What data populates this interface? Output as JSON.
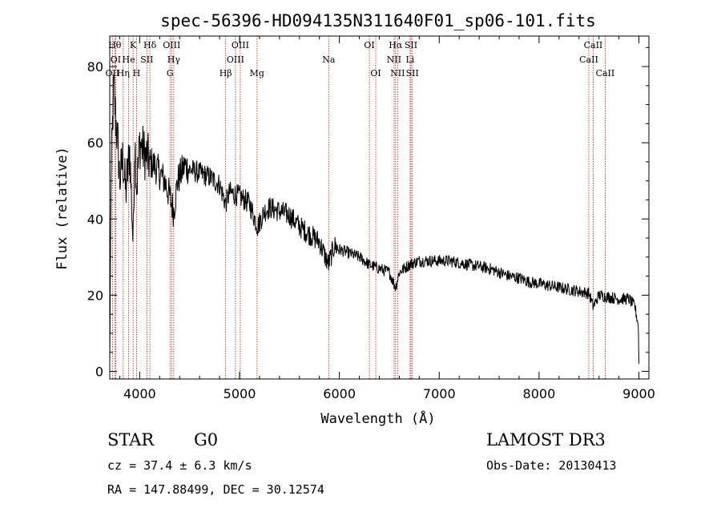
{
  "chart_data": {
    "type": "line",
    "title": "spec-56396-HD094135N311640F01_sp06-101.fits",
    "xlabel": "Wavelength (Å)",
    "ylabel": "Flux (relative)",
    "xlim": [
      3700,
      9100
    ],
    "ylim": [
      -2,
      88
    ],
    "x_ticks": [
      4000,
      5000,
      6000,
      7000,
      8000,
      9000
    ],
    "y_ticks": [
      0,
      20,
      40,
      60,
      80
    ],
    "grid": false,
    "legend": "none",
    "series_color": "#000000",
    "marker_color": "#b22222",
    "spectrum_anchors": [
      [
        3700,
        2
      ],
      [
        3712,
        48
      ],
      [
        3725,
        62
      ],
      [
        3740,
        75
      ],
      [
        3760,
        66
      ],
      [
        3780,
        60
      ],
      [
        3800,
        50
      ],
      [
        3830,
        56
      ],
      [
        3860,
        47
      ],
      [
        3900,
        58
      ],
      [
        3935,
        33
      ],
      [
        3950,
        62
      ],
      [
        3970,
        48
      ],
      [
        4000,
        60
      ],
      [
        4050,
        57
      ],
      [
        4100,
        55
      ],
      [
        4150,
        54
      ],
      [
        4200,
        52
      ],
      [
        4250,
        50
      ],
      [
        4300,
        46
      ],
      [
        4340,
        42
      ],
      [
        4380,
        50
      ],
      [
        4450,
        54
      ],
      [
        4500,
        53
      ],
      [
        4600,
        52
      ],
      [
        4700,
        51
      ],
      [
        4800,
        49
      ],
      [
        4860,
        44
      ],
      [
        4900,
        47
      ],
      [
        5000,
        46
      ],
      [
        5100,
        44
      ],
      [
        5180,
        38
      ],
      [
        5250,
        42
      ],
      [
        5300,
        43
      ],
      [
        5400,
        42
      ],
      [
        5500,
        41
      ],
      [
        5600,
        38
      ],
      [
        5700,
        36
      ],
      [
        5800,
        34
      ],
      [
        5890,
        28
      ],
      [
        5950,
        33
      ],
      [
        6000,
        32
      ],
      [
        6100,
        31
      ],
      [
        6200,
        30
      ],
      [
        6300,
        28
      ],
      [
        6400,
        27
      ],
      [
        6500,
        26
      ],
      [
        6563,
        22
      ],
      [
        6600,
        26
      ],
      [
        6700,
        28
      ],
      [
        6800,
        29
      ],
      [
        6900,
        29
      ],
      [
        7000,
        29
      ],
      [
        7100,
        29
      ],
      [
        7200,
        28.5
      ],
      [
        7300,
        28
      ],
      [
        7400,
        27.5
      ],
      [
        7500,
        27
      ],
      [
        7600,
        26
      ],
      [
        7700,
        25
      ],
      [
        7800,
        24.5
      ],
      [
        7900,
        23.5
      ],
      [
        8000,
        23
      ],
      [
        8100,
        22.5
      ],
      [
        8200,
        22
      ],
      [
        8300,
        21.5
      ],
      [
        8400,
        21
      ],
      [
        8500,
        20.5
      ],
      [
        8542,
        17
      ],
      [
        8600,
        20
      ],
      [
        8700,
        19.5
      ],
      [
        8800,
        19
      ],
      [
        8900,
        19
      ],
      [
        8960,
        17
      ],
      [
        8995,
        12
      ],
      [
        9000,
        2
      ]
    ],
    "spectral_lines": [
      {
        "label": "OII",
        "wavelength": 3727,
        "row": 3
      },
      {
        "label": "Hθ",
        "wavelength": 3750,
        "row": 1
      },
      {
        "label": "OI",
        "wavelength": 3760,
        "row": 2
      },
      {
        "label": "Hη",
        "wavelength": 3835,
        "row": 3
      },
      {
        "label": "He",
        "wavelength": 3889,
        "row": 2
      },
      {
        "label": "K",
        "wavelength": 3934,
        "row": 1
      },
      {
        "label": "H",
        "wavelength": 3968,
        "row": 3
      },
      {
        "label": "SII",
        "wavelength": 4072,
        "row": 2
      },
      {
        "label": "Hδ",
        "wavelength": 4102,
        "row": 1
      },
      {
        "label": "G",
        "wavelength": 4304,
        "row": 3
      },
      {
        "label": "OIII",
        "wavelength": 4320,
        "row": 1
      },
      {
        "label": "Hγ",
        "wavelength": 4341,
        "row": 2
      },
      {
        "label": "Hβ",
        "wavelength": 4861,
        "row": 3
      },
      {
        "label": "OIII",
        "wavelength": 4959,
        "row": 2
      },
      {
        "label": "OIII",
        "wavelength": 5007,
        "row": 1
      },
      {
        "label": "Mg",
        "wavelength": 5175,
        "row": 3
      },
      {
        "label": "Na",
        "wavelength": 5893,
        "row": 2
      },
      {
        "label": "OI",
        "wavelength": 6300,
        "row": 1
      },
      {
        "label": "OI",
        "wavelength": 6364,
        "row": 3
      },
      {
        "label": "NII",
        "wavelength": 6548,
        "row": 2
      },
      {
        "label": "Hα",
        "wavelength": 6563,
        "row": 1
      },
      {
        "label": "NII",
        "wavelength": 6583,
        "row": 3
      },
      {
        "label": "Li",
        "wavelength": 6708,
        "row": 2
      },
      {
        "label": "SII",
        "wavelength": 6717,
        "row": 1
      },
      {
        "label": "SII",
        "wavelength": 6731,
        "row": 3
      },
      {
        "label": "CaII",
        "wavelength": 8498,
        "row": 2
      },
      {
        "label": "CaII",
        "wavelength": 8542,
        "row": 1
      },
      {
        "label": "CaII",
        "wavelength": 8662,
        "row": 3
      }
    ]
  },
  "info": {
    "object_class": "STAR",
    "subclass": "G0",
    "survey": "LAMOST DR3",
    "redshift": "cz = 37.4 ± 6.3 km/s",
    "obs_date": "Obs-Date: 20130413",
    "coordinates": "RA = 147.88499, DEC =  30.12574"
  }
}
